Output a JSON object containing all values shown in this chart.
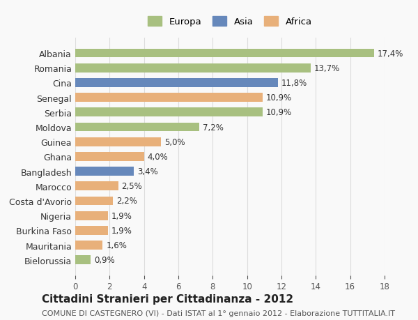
{
  "countries": [
    "Albania",
    "Romania",
    "Cina",
    "Senegal",
    "Serbia",
    "Moldova",
    "Guinea",
    "Ghana",
    "Bangladesh",
    "Marocco",
    "Costa d'Avorio",
    "Nigeria",
    "Burkina Faso",
    "Mauritania",
    "Bielorussia"
  ],
  "values": [
    17.4,
    13.7,
    11.8,
    10.9,
    10.9,
    7.2,
    5.0,
    4.0,
    3.4,
    2.5,
    2.2,
    1.9,
    1.9,
    1.6,
    0.9
  ],
  "labels": [
    "17,4%",
    "13,7%",
    "11,8%",
    "10,9%",
    "10,9%",
    "7,2%",
    "5,0%",
    "4,0%",
    "3,4%",
    "2,5%",
    "2,2%",
    "1,9%",
    "1,9%",
    "1,6%",
    "0,9%"
  ],
  "continents": [
    "Europa",
    "Europa",
    "Asia",
    "Africa",
    "Europa",
    "Europa",
    "Africa",
    "Africa",
    "Asia",
    "Africa",
    "Africa",
    "Africa",
    "Africa",
    "Africa",
    "Europa"
  ],
  "colors": {
    "Europa": "#a8c080",
    "Asia": "#6688bb",
    "Africa": "#e8b07a"
  },
  "legend_labels": [
    "Europa",
    "Asia",
    "Africa"
  ],
  "xlim": [
    0,
    18
  ],
  "xticks": [
    0,
    2,
    4,
    6,
    8,
    10,
    12,
    14,
    16,
    18
  ],
  "title": "Cittadini Stranieri per Cittadinanza - 2012",
  "subtitle": "COMUNE DI CASTEGNERO (VI) - Dati ISTAT al 1° gennaio 2012 - Elaborazione TUTTITALIA.IT",
  "background_color": "#f9f9f9",
  "grid_color": "#dddddd",
  "bar_height": 0.6,
  "label_fontsize": 8.5,
  "title_fontsize": 11,
  "subtitle_fontsize": 8
}
